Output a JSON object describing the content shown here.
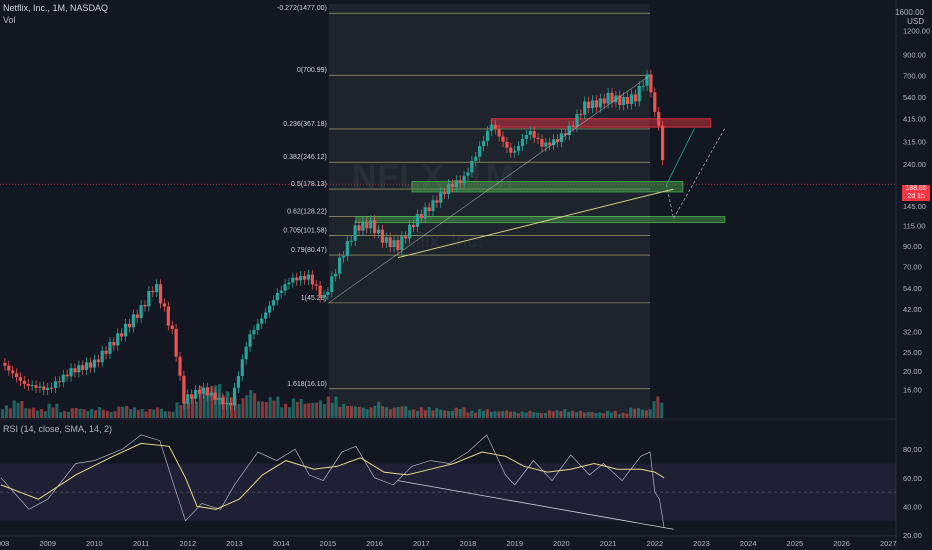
{
  "header": {
    "symbol_line": "Netflix, Inc., 1M, NASDAQ",
    "vol_label": "Vol",
    "currency_top": "1600.00",
    "currency": "USD"
  },
  "rsi_header": "RSI (14, close, SMA, 14, 2)",
  "watermark": {
    "ticker": "NFLX, 1M",
    "name": "Netflix, Inc."
  },
  "last_price_tag": {
    "price": "188.85",
    "countdown": "2d 1h"
  },
  "colors": {
    "background": "#131722",
    "up": "#26a69a",
    "down": "#ef5350",
    "fib_line": "#d4d08a",
    "resistance_zone": "#f23645",
    "support_zone": "#4caf50",
    "rsi_line": "#b2b5be",
    "rsi_ma": "#e6d98a",
    "rsi_band": "#7e57c2"
  },
  "chart_data": [
    {
      "type": "candlestick",
      "title": "Netflix, Inc., 1M, NASDAQ",
      "y_scale": "log",
      "ylim": [
        12,
        1600
      ],
      "y_ticks": [
        16,
        20,
        25,
        32,
        42,
        54,
        70,
        90,
        115,
        145,
        188.85,
        240,
        315,
        415,
        540,
        700,
        900,
        1200
      ],
      "x_ticks": [
        "2008",
        "2009",
        "2010",
        "2011",
        "2012",
        "2013",
        "2014",
        "2015",
        "2016",
        "2017",
        "2018",
        "2019",
        "2020",
        "2021",
        "2022",
        "2023",
        "2024",
        "2025",
        "2026",
        "2027"
      ],
      "price_path": [
        [
          2008.0,
          22
        ],
        [
          2008.5,
          17
        ],
        [
          2009.0,
          16
        ],
        [
          2009.5,
          20
        ],
        [
          2010.0,
          22
        ],
        [
          2010.5,
          30
        ],
        [
          2011.0,
          42
        ],
        [
          2011.3,
          57
        ],
        [
          2011.7,
          30
        ],
        [
          2011.9,
          14
        ],
        [
          2012.3,
          16
        ],
        [
          2012.9,
          13
        ],
        [
          2013.3,
          30
        ],
        [
          2013.6,
          38
        ],
        [
          2013.9,
          50
        ],
        [
          2014.2,
          60
        ],
        [
          2014.6,
          62
        ],
        [
          2014.9,
          47
        ],
        [
          2015.3,
          80
        ],
        [
          2015.6,
          112
        ],
        [
          2015.9,
          118
        ],
        [
          2016.2,
          96
        ],
        [
          2016.5,
          90
        ],
        [
          2016.9,
          125
        ],
        [
          2017.2,
          145
        ],
        [
          2017.6,
          185
        ],
        [
          2017.9,
          200
        ],
        [
          2018.3,
          310
        ],
        [
          2018.5,
          390
        ],
        [
          2018.8,
          300
        ],
        [
          2018.95,
          270
        ],
        [
          2019.3,
          360
        ],
        [
          2019.6,
          300
        ],
        [
          2019.9,
          320
        ],
        [
          2020.2,
          375
        ],
        [
          2020.5,
          490
        ],
        [
          2020.8,
          500
        ],
        [
          2021.0,
          540
        ],
        [
          2021.3,
          510
        ],
        [
          2021.6,
          540
        ],
        [
          2021.8,
          690
        ],
        [
          2021.9,
          640
        ],
        [
          2022.0,
          430
        ],
        [
          2022.1,
          395
        ],
        [
          2022.2,
          188.85
        ]
      ],
      "volume_heights": [
        0.35,
        0.5,
        0.3,
        0.25,
        0.4,
        0.2,
        0.3,
        0.25,
        0.3,
        0.2,
        0.35,
        0.3,
        0.25,
        0.3,
        0.2,
        0.45,
        0.6,
        0.9,
        1.0,
        0.75,
        0.55,
        0.8,
        0.5,
        0.6,
        0.4,
        0.55,
        0.45,
        0.5,
        0.6,
        0.4,
        0.35,
        0.3,
        0.45,
        0.3,
        0.35,
        0.25,
        0.3,
        0.28,
        0.22,
        0.3,
        0.2,
        0.25,
        0.2,
        0.22,
        0.18,
        0.2,
        0.15,
        0.22,
        0.25,
        0.2,
        0.18,
        0.16,
        0.2,
        0.15,
        0.3,
        0.25,
        0.6
      ],
      "fib_levels": [
        {
          "label": "-0.272(1477.00)",
          "price": 1477
        },
        {
          "label": "0(700.99)",
          "price": 700.99
        },
        {
          "label": "0.236(367.18)",
          "price": 367.18
        },
        {
          "label": "0.382(246.12)",
          "price": 246.12
        },
        {
          "label": "0.5(178.13)",
          "price": 178.13
        },
        {
          "label": "0.62(128.22)",
          "price": 128.22
        },
        {
          "label": "0.705(101.58)",
          "price": 101.58
        },
        {
          "label": "0.79(80.47)",
          "price": 80.47
        },
        {
          "label": "1(45.28)",
          "price": 45.28
        },
        {
          "label": "1.618(16.10)",
          "price": 16.1
        }
      ],
      "zones": [
        {
          "kind": "resistance",
          "top": 415,
          "bottom": 375,
          "x_start": 2018.5,
          "x_end": 2023.2
        },
        {
          "kind": "support",
          "top": 195,
          "bottom": 172,
          "x_start": 2016.8,
          "x_end": 2022.6
        },
        {
          "kind": "support",
          "top": 128,
          "bottom": 119,
          "x_start": 2015.6,
          "x_end": 2023.5
        }
      ]
    },
    {
      "type": "line",
      "title": "RSI (14, close, SMA, 14, 2)",
      "ylim": [
        20,
        92
      ],
      "y_ticks": [
        20,
        40,
        60,
        80
      ],
      "band": [
        30,
        70
      ],
      "mid": 50,
      "series": [
        {
          "values": [
            [
              2008.0,
              60
            ],
            [
              2008.6,
              38
            ],
            [
              2009.0,
              45
            ],
            [
              2009.6,
              70
            ],
            [
              2010.0,
              72
            ],
            [
              2010.6,
              80
            ],
            [
              2011.0,
              90
            ],
            [
              2011.4,
              86
            ],
            [
              2011.7,
              55
            ],
            [
              2011.95,
              30
            ],
            [
              2012.3,
              42
            ],
            [
              2012.7,
              38
            ],
            [
              2013.0,
              55
            ],
            [
              2013.5,
              78
            ],
            [
              2013.9,
              72
            ],
            [
              2014.3,
              80
            ],
            [
              2014.6,
              62
            ],
            [
              2014.9,
              58
            ],
            [
              2015.3,
              78
            ],
            [
              2015.6,
              82
            ],
            [
              2016.0,
              60
            ],
            [
              2016.4,
              55
            ],
            [
              2016.8,
              68
            ],
            [
              2017.2,
              72
            ],
            [
              2017.6,
              70
            ],
            [
              2018.0,
              78
            ],
            [
              2018.4,
              90
            ],
            [
              2018.8,
              62
            ],
            [
              2019.0,
              55
            ],
            [
              2019.4,
              72
            ],
            [
              2019.8,
              58
            ],
            [
              2020.2,
              76
            ],
            [
              2020.6,
              62
            ],
            [
              2020.9,
              70
            ],
            [
              2021.3,
              58
            ],
            [
              2021.7,
              75
            ],
            [
              2021.9,
              78
            ],
            [
              2022.0,
              50
            ],
            [
              2022.1,
              45
            ],
            [
              2022.2,
              25
            ]
          ]
        },
        {
          "values": [
            [
              2008.0,
              55
            ],
            [
              2008.8,
              45
            ],
            [
              2009.6,
              62
            ],
            [
              2010.4,
              75
            ],
            [
              2011.0,
              84
            ],
            [
              2011.6,
              82
            ],
            [
              2011.95,
              60
            ],
            [
              2012.2,
              40
            ],
            [
              2012.6,
              38
            ],
            [
              2013.1,
              45
            ],
            [
              2013.6,
              62
            ],
            [
              2014.1,
              72
            ],
            [
              2014.7,
              66
            ],
            [
              2015.2,
              68
            ],
            [
              2015.7,
              74
            ],
            [
              2016.2,
              64
            ],
            [
              2016.7,
              62
            ],
            [
              2017.2,
              66
            ],
            [
              2017.7,
              70
            ],
            [
              2018.3,
              78
            ],
            [
              2018.8,
              75
            ],
            [
              2019.2,
              68
            ],
            [
              2019.7,
              64
            ],
            [
              2020.2,
              66
            ],
            [
              2020.7,
              70
            ],
            [
              2021.2,
              66
            ],
            [
              2021.7,
              66
            ],
            [
              2022.0,
              64
            ],
            [
              2022.2,
              60
            ]
          ]
        }
      ]
    }
  ]
}
